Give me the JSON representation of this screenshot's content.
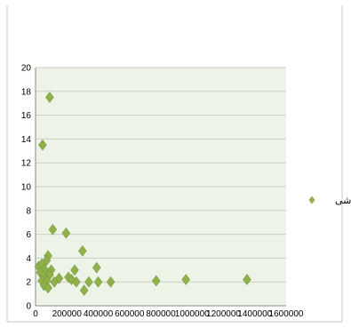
{
  "chart_data": {
    "type": "scatter",
    "title": "",
    "xlabel": "",
    "ylabel": "",
    "xlim": [
      0,
      1600000
    ],
    "ylim": [
      0,
      20
    ],
    "x_ticks": [
      0,
      200000,
      400000,
      600000,
      800000,
      1000000,
      1200000,
      1400000,
      1600000
    ],
    "y_ticks": [
      0,
      2,
      4,
      6,
      8,
      10,
      12,
      14,
      16,
      18,
      20
    ],
    "x_tick_labels": [
      "0",
      "200000",
      "400000",
      "600000",
      "800000",
      "1000000",
      "1200000",
      "1400000",
      "1600000"
    ],
    "y_tick_labels": [
      "0",
      "2",
      "4",
      "6",
      "8",
      "10",
      "12",
      "14",
      "16",
      "18",
      "20"
    ],
    "grid": "horizontal",
    "legend_position": "right",
    "plot_background": "#eef3e8",
    "series": [
      {
        "name": "ورزشی",
        "color": "#8fb04a",
        "marker": "diamond",
        "points": [
          [
            90000,
            17.5
          ],
          [
            45000,
            13.5
          ],
          [
            110000,
            6.4
          ],
          [
            195000,
            6.1
          ],
          [
            300000,
            4.6
          ],
          [
            80000,
            4.2
          ],
          [
            70000,
            3.8
          ],
          [
            20000,
            3.3
          ],
          [
            40000,
            3.5
          ],
          [
            60000,
            3.0
          ],
          [
            100000,
            3.0
          ],
          [
            250000,
            3.0
          ],
          [
            390000,
            3.2
          ],
          [
            30000,
            2.8
          ],
          [
            50000,
            2.5
          ],
          [
            90000,
            2.6
          ],
          [
            210000,
            2.4
          ],
          [
            150000,
            2.3
          ],
          [
            230000,
            2.2
          ],
          [
            40000,
            2.1
          ],
          [
            70000,
            2.1
          ],
          [
            120000,
            2.0
          ],
          [
            260000,
            2.0
          ],
          [
            340000,
            2.0
          ],
          [
            400000,
            2.0
          ],
          [
            480000,
            2.0
          ],
          [
            770000,
            2.1
          ],
          [
            960000,
            2.2
          ],
          [
            1350000,
            2.2
          ],
          [
            55000,
            1.7
          ],
          [
            80000,
            1.5
          ],
          [
            310000,
            1.3
          ]
        ]
      }
    ]
  }
}
